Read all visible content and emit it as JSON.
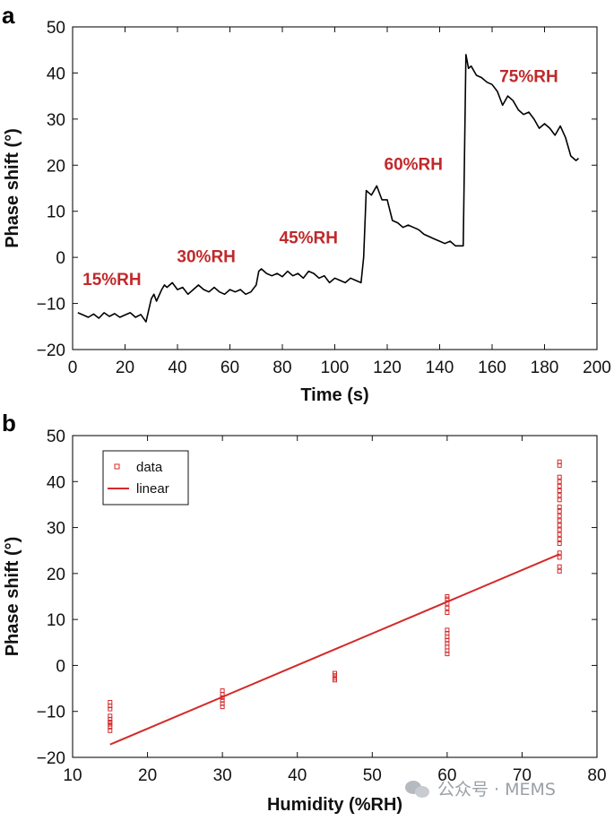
{
  "panels": {
    "a": {
      "letter": "a"
    },
    "b": {
      "letter": "b"
    }
  },
  "watermark": {
    "text": "公众号 · MEMS",
    "icon": "wechat-icon"
  },
  "chart_data": [
    {
      "type": "line",
      "panel": "a",
      "xlabel": "Time (s)",
      "ylabel": "Phase shift (°)",
      "xlim": [
        0,
        200
      ],
      "ylim": [
        -20,
        50
      ],
      "xticks": [
        0,
        20,
        40,
        60,
        80,
        100,
        120,
        140,
        160,
        180,
        200
      ],
      "yticks": [
        -20,
        -10,
        0,
        10,
        20,
        30,
        40,
        50
      ],
      "grid": false,
      "line_color": "#000000",
      "annotation_color": "#c0292b",
      "annotations": [
        {
          "text": "15%RH",
          "x": 15,
          "y": -6
        },
        {
          "text": "30%RH",
          "x": 51,
          "y": -1
        },
        {
          "text": "45%RH",
          "x": 90,
          "y": 3
        },
        {
          "text": "60%RH",
          "x": 130,
          "y": 19
        },
        {
          "text": "75%RH",
          "x": 174,
          "y": 38
        }
      ],
      "x": [
        2,
        4,
        6,
        8,
        10,
        12,
        14,
        16,
        18,
        20,
        22,
        24,
        26,
        28,
        29,
        30,
        31,
        32,
        34,
        35,
        36,
        38,
        40,
        42,
        44,
        46,
        48,
        50,
        52,
        54,
        56,
        58,
        60,
        62,
        64,
        66,
        68,
        70,
        71,
        72,
        74,
        76,
        78,
        80,
        82,
        84,
        86,
        88,
        90,
        92,
        94,
        96,
        98,
        100,
        102,
        104,
        106,
        108,
        110,
        111,
        112,
        114,
        116,
        118,
        120,
        122,
        124,
        126,
        128,
        130,
        132,
        134,
        136,
        138,
        140,
        142,
        144,
        146,
        148,
        149,
        150,
        151,
        152,
        154,
        156,
        158,
        160,
        162,
        164,
        166,
        168,
        170,
        172,
        174,
        176,
        178,
        180,
        182,
        184,
        186,
        188,
        190,
        192,
        193
      ],
      "y": [
        -12,
        -12.5,
        -13,
        -12.3,
        -13.2,
        -12,
        -12.8,
        -12.2,
        -13,
        -12.5,
        -12,
        -13,
        -12.4,
        -14,
        -11.5,
        -9,
        -8,
        -9.5,
        -7,
        -6,
        -6.5,
        -5.5,
        -7,
        -6.5,
        -8,
        -7,
        -6,
        -7,
        -7.5,
        -6.5,
        -7.5,
        -8,
        -7,
        -7.5,
        -7,
        -8,
        -7.5,
        -6,
        -3,
        -2.5,
        -3.5,
        -4,
        -3.5,
        -4.2,
        -3,
        -4,
        -3.5,
        -4.5,
        -3,
        -3.5,
        -4.5,
        -4,
        -5.5,
        -4.5,
        -5,
        -5.5,
        -4.5,
        -5,
        -5.5,
        0,
        14.5,
        13.5,
        15.5,
        12.5,
        12.5,
        8,
        7.5,
        6.5,
        7,
        6.5,
        6,
        5,
        4.5,
        4,
        3.5,
        3,
        3.5,
        2.5,
        2.5,
        2.5,
        44,
        41,
        41.5,
        39.5,
        39,
        38,
        37.5,
        36,
        33,
        35,
        34,
        32,
        31,
        31.5,
        30,
        28,
        29,
        28,
        26.5,
        28.5,
        26,
        22,
        21,
        21.5
      ]
    },
    {
      "type": "scatter",
      "panel": "b",
      "xlabel": "Humidity (%RH)",
      "ylabel": "Phase shift (°)",
      "xlim": [
        10,
        80
      ],
      "ylim": [
        -20,
        50
      ],
      "xticks": [
        10,
        20,
        30,
        40,
        50,
        60,
        70,
        80
      ],
      "yticks": [
        -20,
        -10,
        0,
        10,
        20,
        30,
        40,
        50
      ],
      "grid": false,
      "legend_placement": "top-left",
      "color": "#d42a2a",
      "series": [
        {
          "name": "data",
          "points": [
            [
              15,
              -8
            ],
            [
              15,
              -8.8
            ],
            [
              15,
              -9.5
            ],
            [
              15,
              -11
            ],
            [
              15,
              -11.7
            ],
            [
              15,
              -12.3
            ],
            [
              15,
              -12.8
            ],
            [
              15,
              -13.3
            ],
            [
              15,
              -14.2
            ],
            [
              30,
              -5.5
            ],
            [
              30,
              -6.3
            ],
            [
              30,
              -7
            ],
            [
              30,
              -7.6
            ],
            [
              30,
              -8.3
            ],
            [
              30,
              -9
            ],
            [
              45,
              -1.7
            ],
            [
              45,
              -2.2
            ],
            [
              45,
              -2.8
            ],
            [
              45,
              -3.2
            ],
            [
              60,
              2.5
            ],
            [
              60,
              3.2
            ],
            [
              60,
              4
            ],
            [
              60,
              4.8
            ],
            [
              60,
              5.5
            ],
            [
              60,
              6.2
            ],
            [
              60,
              7
            ],
            [
              60,
              7.7
            ],
            [
              60,
              11.5
            ],
            [
              60,
              12.5
            ],
            [
              60,
              13.5
            ],
            [
              60,
              14.5
            ],
            [
              60,
              15
            ],
            [
              75,
              20.5
            ],
            [
              75,
              21.5
            ],
            [
              75,
              23.5
            ],
            [
              75,
              24.5
            ],
            [
              75,
              26.5
            ],
            [
              75,
              27.5
            ],
            [
              75,
              28.5
            ],
            [
              75,
              29.5
            ],
            [
              75,
              30.5
            ],
            [
              75,
              31.5
            ],
            [
              75,
              32.5
            ],
            [
              75,
              33.5
            ],
            [
              75,
              34.5
            ],
            [
              75,
              36
            ],
            [
              75,
              37
            ],
            [
              75,
              38
            ],
            [
              75,
              39
            ],
            [
              75,
              40
            ],
            [
              75,
              41
            ],
            [
              75,
              43.5
            ],
            [
              75,
              44.3
            ]
          ]
        },
        {
          "name": "linear",
          "points": [
            [
              15,
              -17.2
            ],
            [
              75,
              24.2
            ]
          ]
        }
      ]
    }
  ]
}
